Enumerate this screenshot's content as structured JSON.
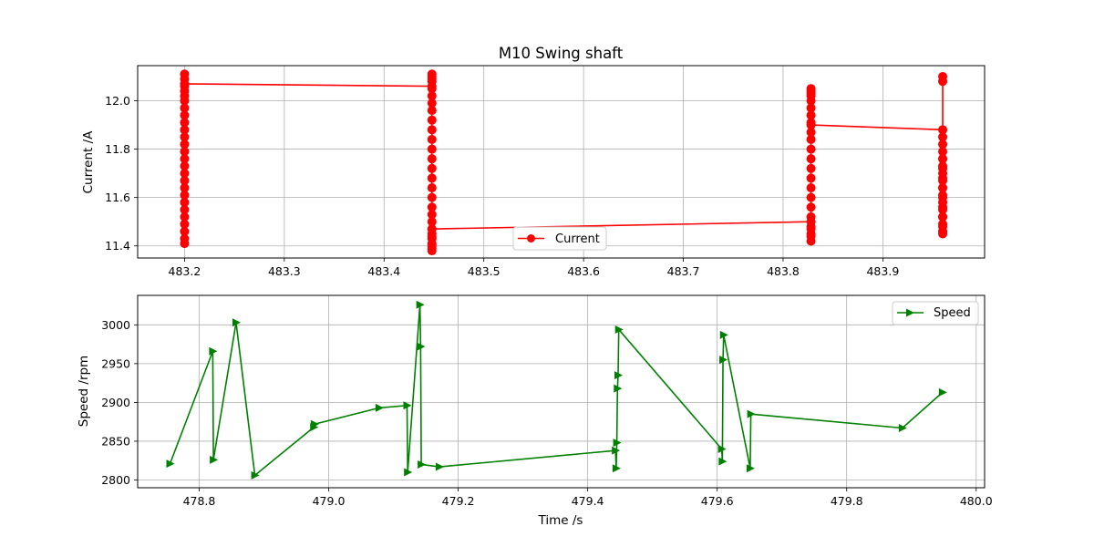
{
  "chart_data": [
    {
      "type": "line",
      "title": "M10 Swing shaft",
      "xlabel": "",
      "ylabel": "Current /A",
      "xlim": [
        483.153,
        484.002
      ],
      "ylim": [
        11.35,
        12.145
      ],
      "xticks": [
        483.2,
        483.3,
        483.4,
        483.5,
        483.6,
        483.7,
        483.8,
        483.9
      ],
      "xtick_labels": [
        "483.2",
        "483.3",
        "483.4",
        "483.5",
        "483.6",
        "483.7",
        "483.8",
        "483.9"
      ],
      "yticks": [
        11.4,
        11.6,
        11.8,
        12.0
      ],
      "ytick_labels": [
        "11.4",
        "11.6",
        "11.8",
        "12.0"
      ],
      "grid": true,
      "legend_position": "lower-center",
      "series": [
        {
          "name": "Current",
          "color": "#ff0000",
          "marker": "circle",
          "x": [
            483.2,
            483.2,
            483.2,
            483.2,
            483.2,
            483.2,
            483.2,
            483.2,
            483.2,
            483.2,
            483.2,
            483.2,
            483.2,
            483.2,
            483.2,
            483.2,
            483.2,
            483.2,
            483.2,
            483.2,
            483.2,
            483.2,
            483.2,
            483.2,
            483.2,
            483.2,
            483.2,
            483.448,
            483.448,
            483.448,
            483.448,
            483.448,
            483.448,
            483.448,
            483.448,
            483.448,
            483.448,
            483.448,
            483.448,
            483.448,
            483.448,
            483.448,
            483.448,
            483.448,
            483.448,
            483.448,
            483.448,
            483.448,
            483.448,
            483.448,
            483.448,
            483.448,
            483.448,
            483.448,
            483.448,
            483.448,
            483.448,
            483.828,
            483.828,
            483.828,
            483.828,
            483.828,
            483.828,
            483.828,
            483.828,
            483.828,
            483.828,
            483.828,
            483.828,
            483.828,
            483.828,
            483.828,
            483.828,
            483.828,
            483.828,
            483.828,
            483.828,
            483.828,
            483.828,
            483.828,
            483.828,
            483.828,
            483.96,
            483.96,
            483.96,
            483.96,
            483.96,
            483.96,
            483.96,
            483.96,
            483.96,
            483.96,
            483.96,
            483.96,
            483.96,
            483.96,
            483.96,
            483.96,
            483.96,
            483.96,
            483.96,
            483.96,
            483.96,
            483.96,
            483.96,
            483.96,
            483.96,
            483.96
          ],
          "y": [
            11.41,
            11.43,
            11.46,
            11.49,
            11.52,
            11.55,
            11.58,
            11.61,
            11.64,
            11.67,
            11.7,
            11.73,
            11.76,
            11.79,
            11.82,
            11.85,
            11.88,
            11.91,
            11.94,
            11.97,
            12.0,
            12.02,
            12.04,
            12.06,
            12.09,
            12.11,
            12.07,
            12.06,
            12.08,
            12.1,
            12.11,
            12.09,
            12.05,
            12.02,
            11.99,
            11.96,
            11.92,
            11.88,
            11.84,
            11.8,
            11.76,
            11.72,
            11.68,
            11.64,
            11.6,
            11.56,
            11.53,
            11.5,
            11.47,
            11.44,
            11.41,
            11.39,
            11.38,
            11.4,
            11.43,
            11.45,
            11.47,
            11.5,
            11.47,
            11.44,
            11.42,
            11.45,
            11.48,
            11.52,
            11.56,
            11.6,
            11.64,
            11.68,
            11.72,
            11.76,
            11.8,
            11.84,
            11.87,
            11.91,
            11.94,
            11.97,
            12.0,
            12.02,
            12.03,
            12.04,
            12.05,
            11.9,
            11.88,
            11.85,
            11.82,
            11.79,
            11.76,
            11.73,
            11.7,
            11.67,
            11.64,
            11.61,
            11.58,
            11.55,
            11.52,
            11.49,
            11.46,
            11.45,
            11.48,
            11.52,
            11.56,
            11.6,
            11.64,
            11.68,
            11.72,
            11.76,
            12.08,
            12.1
          ]
        }
      ]
    },
    {
      "type": "line",
      "title": "",
      "xlabel": "Time /s",
      "ylabel": "Speed /rpm",
      "xlim": [
        478.705,
        480.013
      ],
      "ylim": [
        2790,
        3038
      ],
      "xticks": [
        478.8,
        479.0,
        479.2,
        479.4,
        479.6,
        479.8,
        480.0
      ],
      "xtick_labels": [
        "478.8",
        "479.0",
        "479.2",
        "479.4",
        "479.6",
        "479.8",
        "480.0"
      ],
      "yticks": [
        2800,
        2850,
        2900,
        2950,
        3000
      ],
      "ytick_labels": [
        "2800",
        "2850",
        "2900",
        "2950",
        "3000"
      ],
      "grid": true,
      "legend_position": "top-right",
      "series": [
        {
          "name": "Speed",
          "color": "#008000",
          "marker": "triangle-right",
          "x": [
            478.755,
            478.821,
            478.822,
            478.857,
            478.886,
            478.977,
            478.978,
            479.078,
            479.121,
            479.122,
            479.141,
            479.142,
            479.143,
            479.171,
            479.443,
            479.444,
            479.445,
            479.446,
            479.447,
            479.448,
            479.607,
            479.608,
            479.609,
            479.61,
            479.651,
            479.652,
            479.886,
            479.948
          ],
          "y": [
            2821,
            2966,
            2826,
            3003,
            2806,
            2868,
            2872,
            2893,
            2896,
            2810,
            3026,
            2972,
            2820,
            2817,
            2838,
            2815,
            2848,
            2918,
            2935,
            2994,
            2840,
            2824,
            2955,
            2987,
            2815,
            2885,
            2867,
            2913
          ]
        }
      ]
    }
  ]
}
